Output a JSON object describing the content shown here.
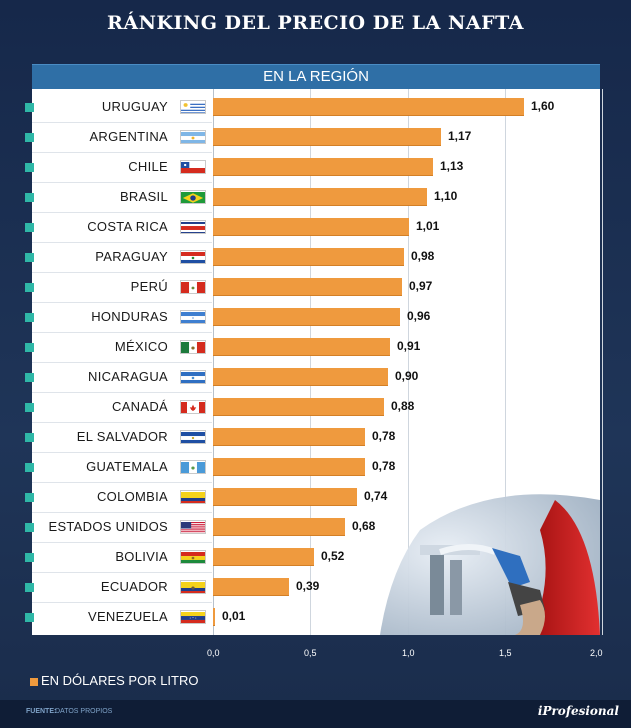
{
  "title": "RÁNKING DEL PRECIO DE LA NAFTA",
  "subtitle": "EN LA REGIÓN",
  "legend": "EN DÓLARES POR LITRO",
  "source_label": "FUENTE:",
  "source_value": "DATOS PROPIOS",
  "brand": "iProfesional",
  "chart_data": {
    "type": "bar",
    "orientation": "horizontal",
    "title": "RÁNKING DEL PRECIO DE LA NAFTA",
    "subtitle": "EN LA REGIÓN",
    "xlabel": "EN DÓLARES POR LITRO",
    "xlim": [
      0,
      2.0
    ],
    "ticks": [
      "0,0",
      "0,5",
      "1,0",
      "1,5",
      "2,0"
    ],
    "tick_values": [
      0,
      0.5,
      1.0,
      1.5,
      2.0
    ],
    "categories": [
      "URUGUAY",
      "ARGENTINA",
      "CHILE",
      "BRASIL",
      "COSTA RICA",
      "PARAGUAY",
      "PERÚ",
      "HONDURAS",
      "MÉXICO",
      "NICARAGUA",
      "CANADÁ",
      "EL SALVADOR",
      "GUATEMALA",
      "COLOMBIA",
      "ESTADOS UNIDOS",
      "BOLIVIA",
      "ECUADOR",
      "VENEZUELA"
    ],
    "values": [
      1.6,
      1.17,
      1.13,
      1.1,
      1.01,
      0.98,
      0.97,
      0.96,
      0.91,
      0.9,
      0.88,
      0.78,
      0.78,
      0.74,
      0.68,
      0.52,
      0.39,
      0.01
    ],
    "labels": [
      "1,60",
      "1,17",
      "1,13",
      "1,10",
      "1,01",
      "0,98",
      "0,97",
      "0,96",
      "0,91",
      "0,90",
      "0,88",
      "0,78",
      "0,78",
      "0,74",
      "0,68",
      "0,52",
      "0,39",
      "0,01"
    ],
    "flags": [
      "uruguay-flag-icon",
      "argentina-flag-icon",
      "chile-flag-icon",
      "brasil-flag-icon",
      "costa-rica-flag-icon",
      "paraguay-flag-icon",
      "peru-flag-icon",
      "honduras-flag-icon",
      "mexico-flag-icon",
      "nicaragua-flag-icon",
      "canada-flag-icon",
      "el-salvador-flag-icon",
      "guatemala-flag-icon",
      "colombia-flag-icon",
      "estados-unidos-flag-icon",
      "bolivia-flag-icon",
      "ecuador-flag-icon",
      "venezuela-flag-icon"
    ],
    "bar_color": "#ef9a3e",
    "marker_color": "#2fb7a7"
  }
}
